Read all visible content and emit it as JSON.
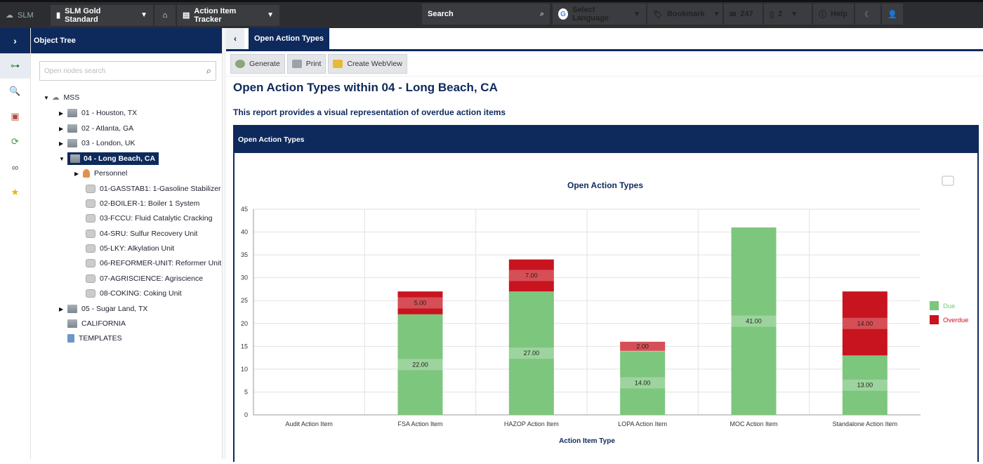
{
  "topbar": {
    "app": "SLM",
    "database": "SLM Gold Standard",
    "module": "Action Item Tracker",
    "search_placeholder": "Search",
    "language": "Select Language",
    "bookmark": "Bookmark",
    "messages_count": "247",
    "docs_count": "2",
    "help": "Help"
  },
  "tree": {
    "header": "Object Tree",
    "search_placeholder": "Open nodes search",
    "root": "MSS",
    "nodes": [
      {
        "label": "01 - Houston, TX"
      },
      {
        "label": "02 - Atlanta, GA"
      },
      {
        "label": "03 - London, UK"
      },
      {
        "label": "04 - Long Beach, CA"
      },
      {
        "label": "Personnel"
      },
      {
        "label": "01-GASSTAB1: 1-Gasoline Stabilizer"
      },
      {
        "label": "02-BOILER-1: Boiler 1 System"
      },
      {
        "label": "03-FCCU: Fluid Catalytic Cracking"
      },
      {
        "label": "04-SRU: Sulfur Recovery Unit"
      },
      {
        "label": "05-LKY: Alkylation Unit"
      },
      {
        "label": "06-REFORMER-UNIT: Reformer Unit"
      },
      {
        "label": "07-AGRISCIENCE: Agriscience"
      },
      {
        "label": "08-COKING: Coking Unit"
      },
      {
        "label": "05 - Sugar Land, TX"
      },
      {
        "label": "CALIFORNIA"
      },
      {
        "label": "TEMPLATES"
      }
    ]
  },
  "main": {
    "tab": "Open Action Types",
    "toolbar": {
      "generate": "Generate",
      "print": "Print",
      "webview": "Create WebView"
    },
    "report_title": "Open Action Types within 04 - Long Beach, CA",
    "report_subtitle": "This report provides a visual representation of overdue action items",
    "panel_title": "Open Action Types"
  },
  "colors": {
    "due": "#7dc67d",
    "overdue": "#c8141e",
    "navy": "#0e2a5c"
  },
  "chart_data": {
    "type": "bar",
    "stacked": true,
    "title": "Open Action Types",
    "xlabel": "Action Item Type",
    "ylabel": "",
    "ylim": [
      0,
      45
    ],
    "yticks": [
      0,
      5,
      10,
      15,
      20,
      25,
      30,
      35,
      40,
      45
    ],
    "categories": [
      "Audit Action Item",
      "FSA Action Item",
      "HAZOP Action Item",
      "LOPA Action Item",
      "MOC Action Item",
      "Standalone Action Item"
    ],
    "series": [
      {
        "name": "Due",
        "values": [
          0,
          22,
          27,
          14,
          41,
          13
        ],
        "color": "#7dc67d"
      },
      {
        "name": "Overdue",
        "values": [
          0,
          5,
          7,
          2,
          0,
          14
        ],
        "color": "#c8141e"
      }
    ],
    "legend": "right",
    "grid": true
  }
}
